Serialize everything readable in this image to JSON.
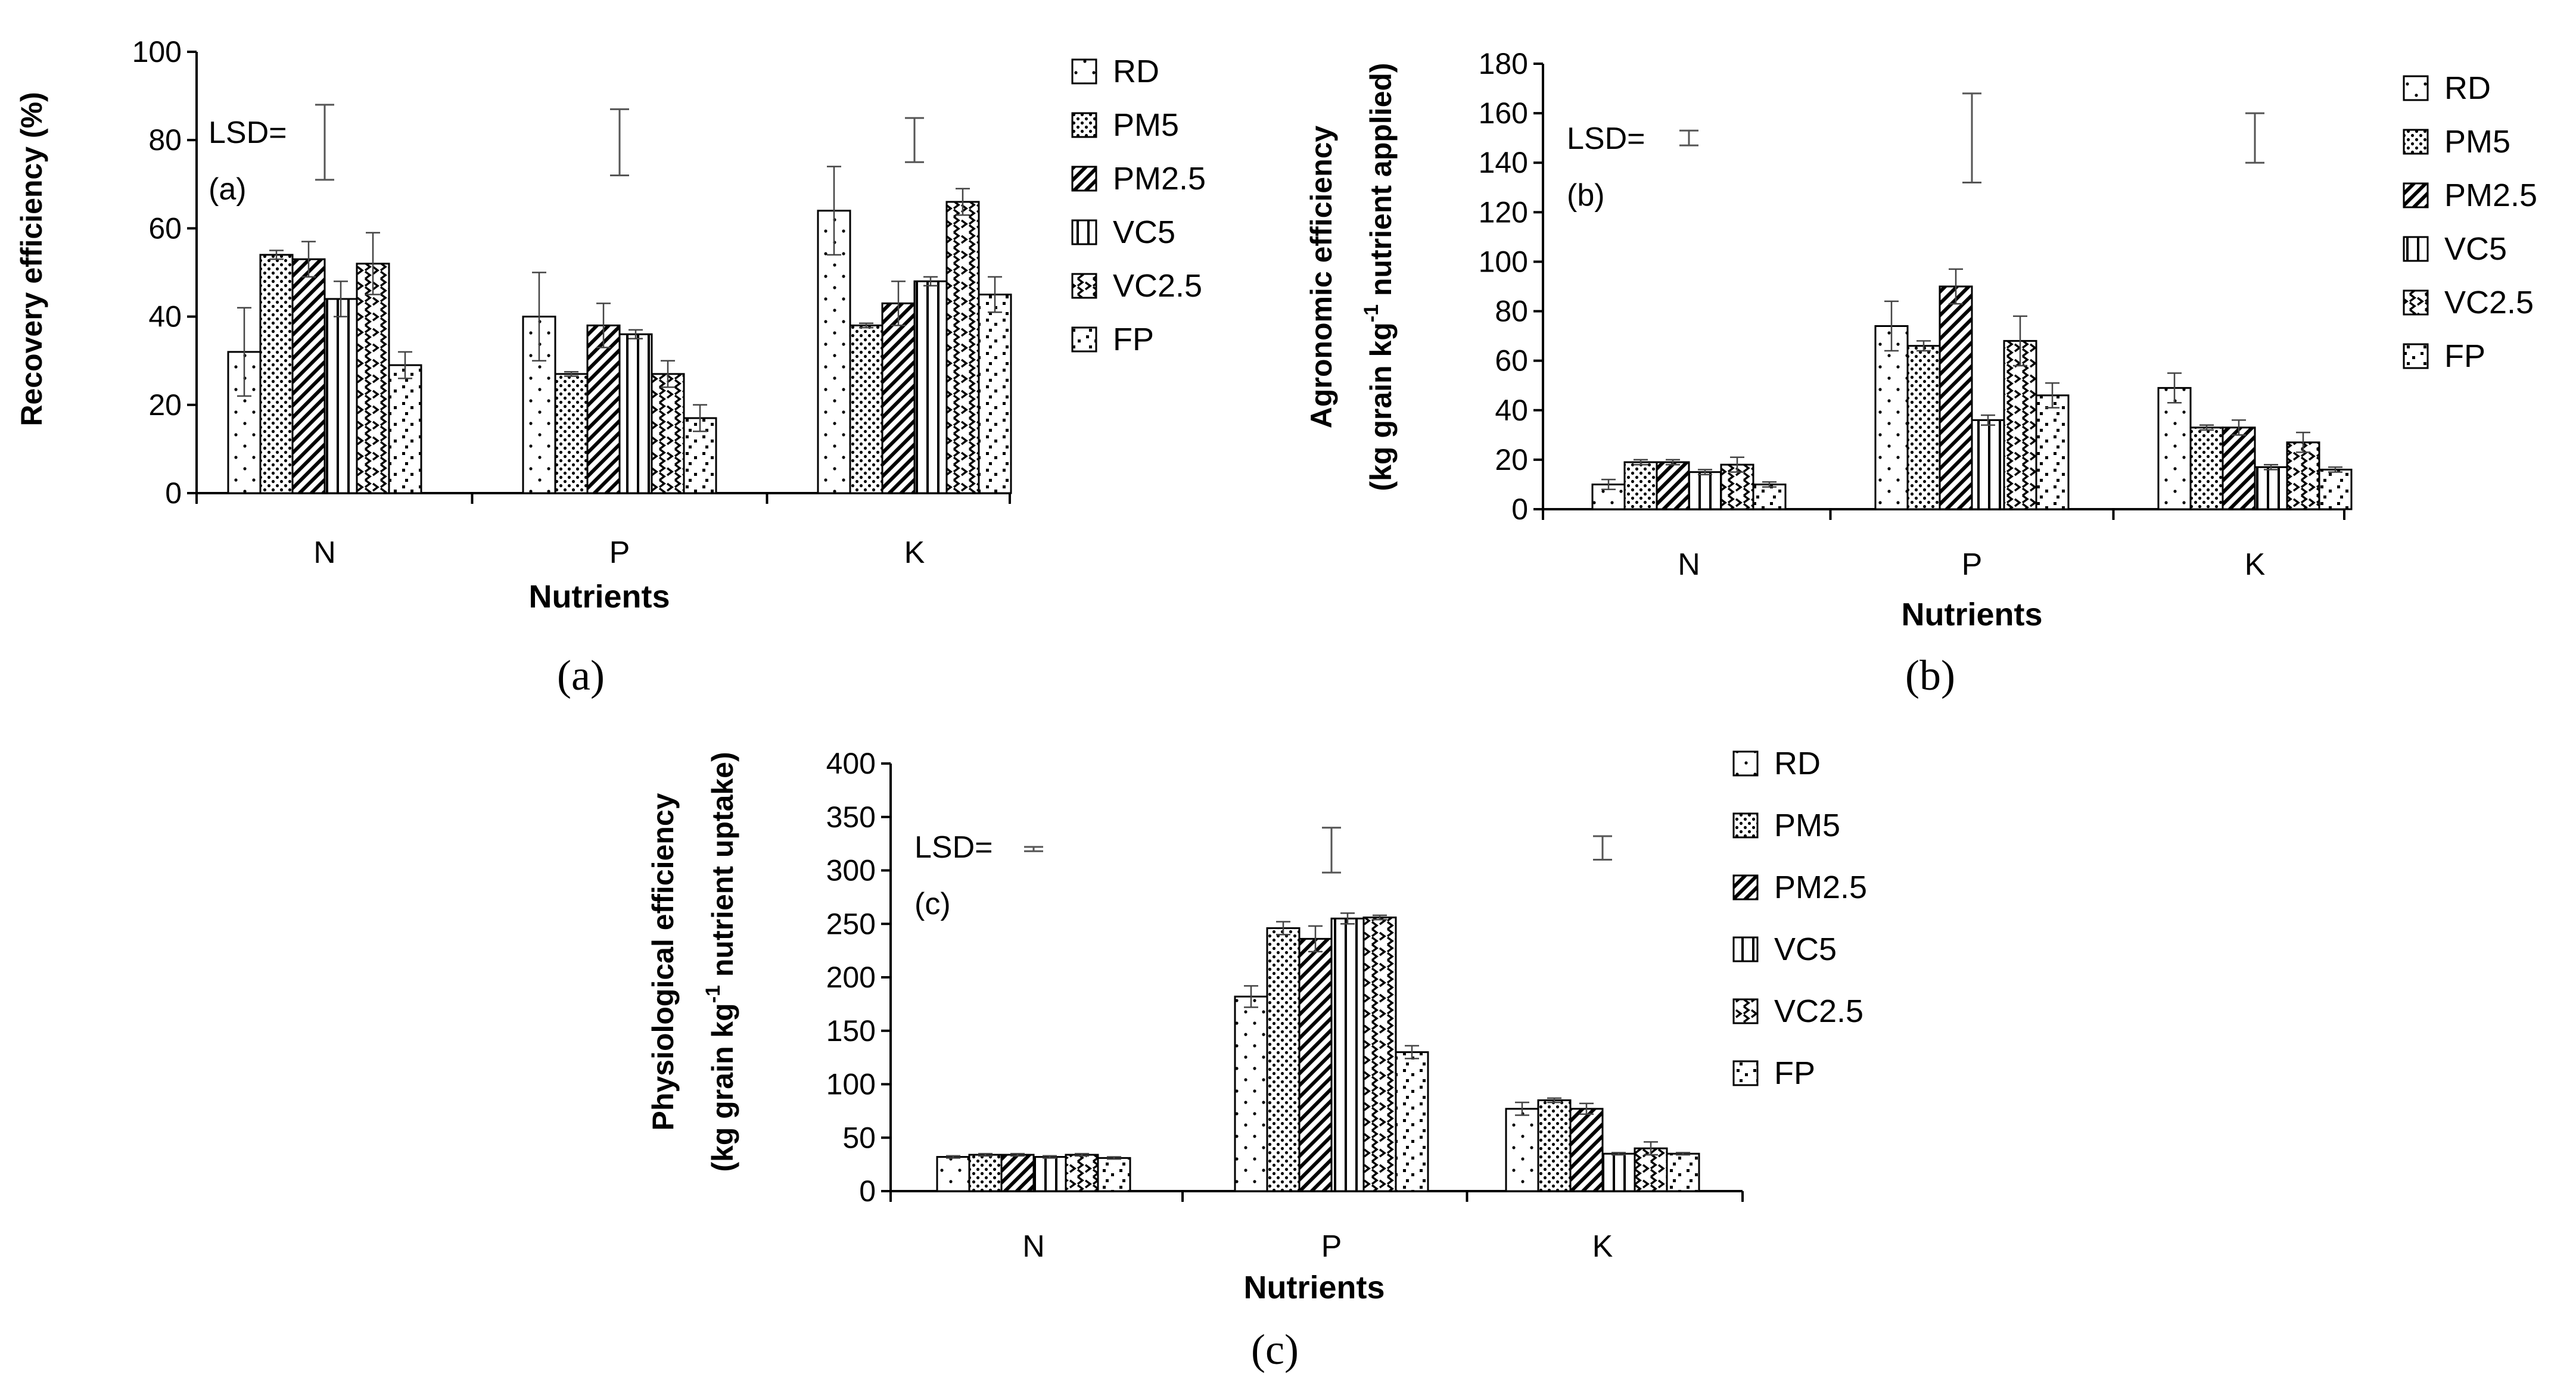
{
  "chart_data": [
    {
      "type": "bar",
      "panel_label": "(a)",
      "caption": "(a)",
      "lsd_label": "LSD=",
      "ylabel": "Recovery efficiency (%)",
      "ylabel_sup": "",
      "ylabel_after": "",
      "ylabel2": "",
      "xlabel": "Nutrients",
      "ylim": [
        0,
        100
      ],
      "yticks": [
        0,
        20,
        40,
        60,
        80,
        100
      ],
      "categories": [
        "N",
        "P",
        "K"
      ],
      "lsd": [
        [
          71,
          88
        ],
        [
          72,
          87
        ],
        [
          75,
          85
        ]
      ],
      "legend_position": "right",
      "series": [
        {
          "name": "RD",
          "pattern": "dots",
          "values": [
            32,
            40,
            64
          ],
          "errors": [
            10,
            10,
            10
          ]
        },
        {
          "name": "PM5",
          "pattern": "dotgrid",
          "values": [
            54,
            27,
            38
          ],
          "errors": [
            1,
            0.5,
            0.5
          ]
        },
        {
          "name": "PM2.5",
          "pattern": "diagonal",
          "values": [
            53,
            38,
            43
          ],
          "errors": [
            4,
            5,
            5
          ]
        },
        {
          "name": "VC5",
          "pattern": "vertical",
          "values": [
            44,
            36,
            48
          ],
          "errors": [
            4,
            1,
            1
          ]
        },
        {
          "name": "VC2.5",
          "pattern": "zigzag",
          "values": [
            52,
            27,
            66
          ],
          "errors": [
            7,
            3,
            3
          ]
        },
        {
          "name": "FP",
          "pattern": "scattered",
          "values": [
            29,
            17,
            45
          ],
          "errors": [
            3,
            3,
            4
          ]
        }
      ]
    },
    {
      "type": "bar",
      "panel_label": "(b)",
      "caption": "(b)",
      "lsd_label": "LSD=",
      "ylabel": "Agronomic efficiency",
      "ylabel2_pre": "(kg grain kg",
      "ylabel_sup": "-1",
      "ylabel2_post": " nutrient applied)",
      "xlabel": "Nutrients",
      "ylim": [
        0,
        180
      ],
      "yticks": [
        0,
        20,
        40,
        60,
        80,
        100,
        120,
        140,
        160,
        180
      ],
      "categories": [
        "N",
        "P",
        "K"
      ],
      "lsd": [
        [
          147,
          153
        ],
        [
          132,
          168
        ],
        [
          140,
          160
        ]
      ],
      "legend_position": "right",
      "series": [
        {
          "name": "RD",
          "pattern": "dots",
          "values": [
            10,
            74,
            49
          ],
          "errors": [
            2,
            10,
            6
          ]
        },
        {
          "name": "PM5",
          "pattern": "dotgrid",
          "values": [
            19,
            66,
            33
          ],
          "errors": [
            1,
            2,
            1
          ]
        },
        {
          "name": "PM2.5",
          "pattern": "diagonal",
          "values": [
            19,
            90,
            33
          ],
          "errors": [
            1,
            7,
            3
          ]
        },
        {
          "name": "VC5",
          "pattern": "vertical",
          "values": [
            15,
            36,
            17
          ],
          "errors": [
            1,
            2,
            1
          ]
        },
        {
          "name": "VC2.5",
          "pattern": "zigzag",
          "values": [
            18,
            68,
            27
          ],
          "errors": [
            3,
            10,
            4
          ]
        },
        {
          "name": "FP",
          "pattern": "scattered",
          "values": [
            10,
            46,
            16
          ],
          "errors": [
            1,
            5,
            1
          ]
        }
      ]
    },
    {
      "type": "bar",
      "panel_label": "(c)",
      "caption": "(c)",
      "lsd_label": "LSD=",
      "ylabel": "Physiological efficiency",
      "ylabel2_pre": "(kg grain kg",
      "ylabel_sup": "-1",
      "ylabel2_post": " nutrient uptake)",
      "xlabel": "Nutrients",
      "ylim": [
        0,
        400
      ],
      "yticks": [
        0,
        50,
        100,
        150,
        200,
        250,
        300,
        350,
        400
      ],
      "categories": [
        "N",
        "P",
        "K"
      ],
      "lsd": [
        [
          318,
          322
        ],
        [
          298,
          340
        ],
        [
          310,
          332
        ]
      ],
      "legend_position": "right",
      "series": [
        {
          "name": "RD",
          "pattern": "dots",
          "values": [
            32,
            182,
            77
          ],
          "errors": [
            1,
            10,
            6
          ]
        },
        {
          "name": "PM5",
          "pattern": "dotgrid",
          "values": [
            34,
            246,
            85
          ],
          "errors": [
            1,
            6,
            2
          ]
        },
        {
          "name": "PM2.5",
          "pattern": "diagonal",
          "values": [
            34,
            236,
            77
          ],
          "errors": [
            1,
            12,
            5
          ]
        },
        {
          "name": "VC5",
          "pattern": "vertical",
          "values": [
            32,
            255,
            35
          ],
          "errors": [
            1,
            5,
            1
          ]
        },
        {
          "name": "VC2.5",
          "pattern": "zigzag",
          "values": [
            34,
            256,
            40
          ],
          "errors": [
            1,
            2,
            6
          ]
        },
        {
          "name": "FP",
          "pattern": "scattered",
          "values": [
            31,
            130,
            35
          ],
          "errors": [
            1,
            6,
            1
          ]
        }
      ]
    }
  ]
}
